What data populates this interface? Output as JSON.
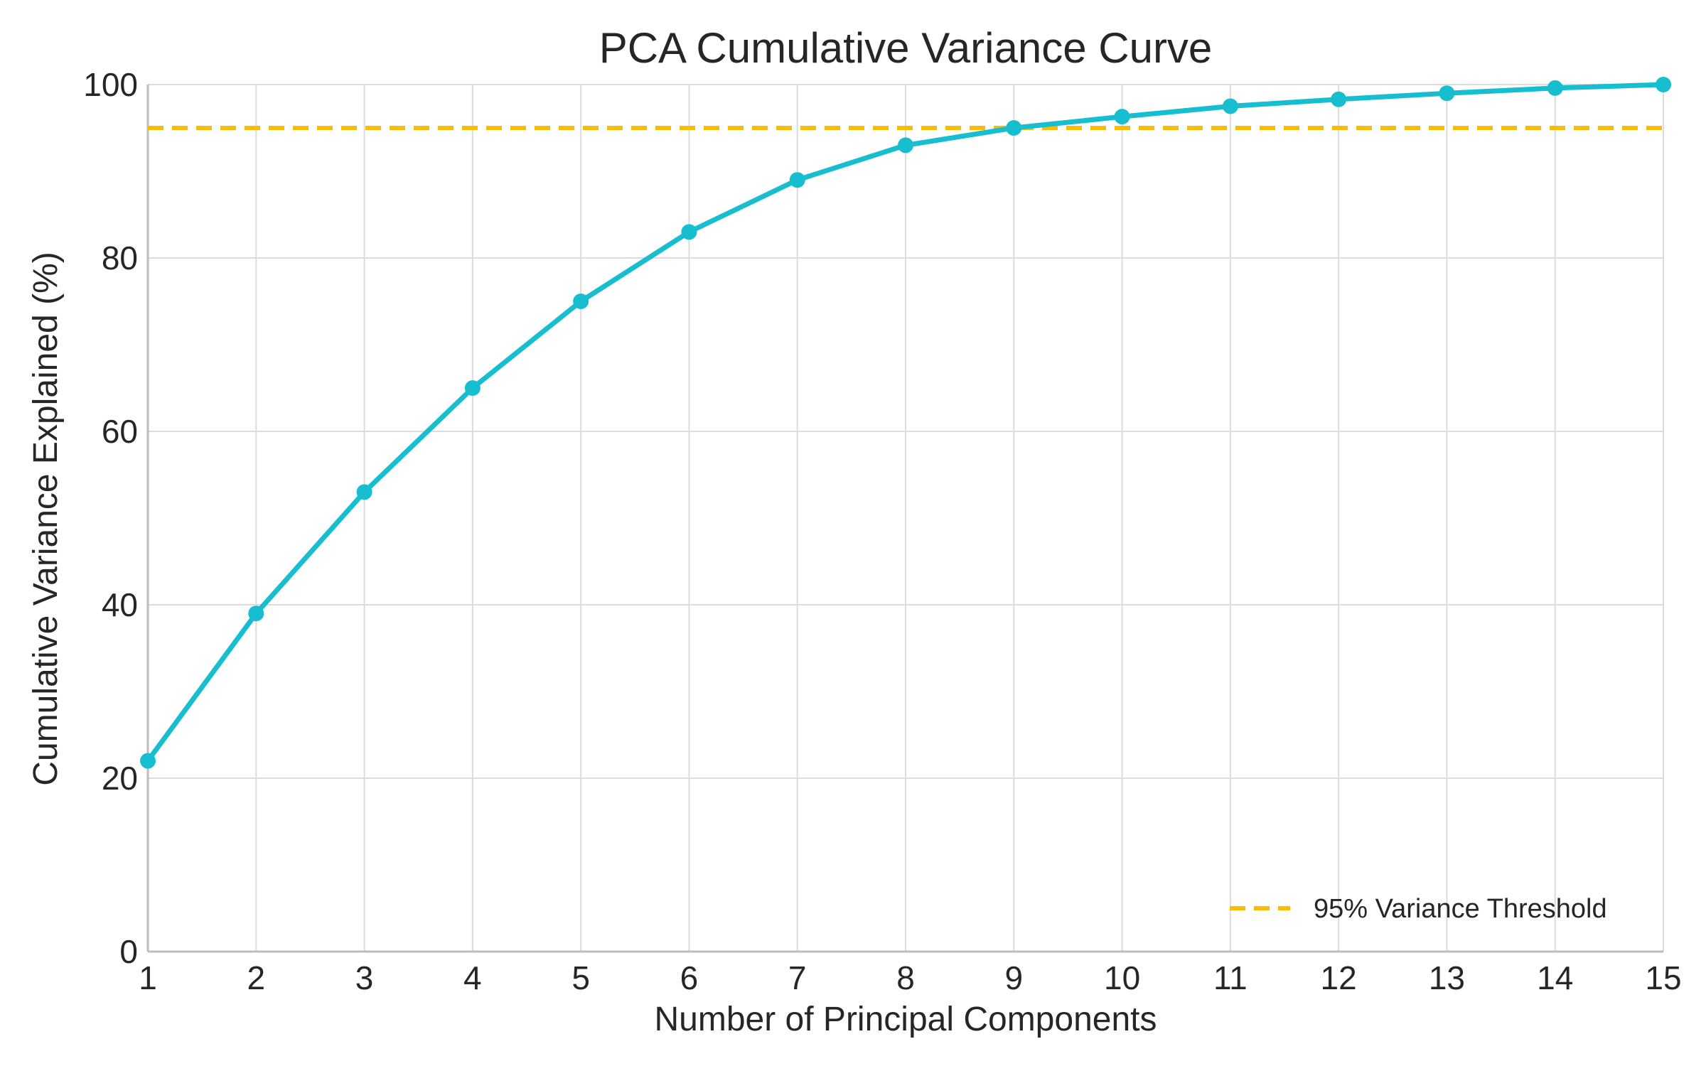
{
  "chart_data": {
    "type": "line",
    "title": "PCA Cumulative Variance Curve",
    "xlabel": "Number of Principal Components",
    "ylabel": "Cumulative Variance Explained (%)",
    "xlim": [
      1,
      15
    ],
    "ylim": [
      0,
      100
    ],
    "x_ticks": [
      1,
      2,
      3,
      4,
      5,
      6,
      7,
      8,
      9,
      10,
      11,
      12,
      13,
      14,
      15
    ],
    "y_ticks": [
      0,
      20,
      40,
      60,
      80,
      100
    ],
    "grid": true,
    "legend_position": "bottom-right",
    "series": [
      {
        "color": "#17becf",
        "marker": "circle",
        "x": [
          1,
          2,
          3,
          4,
          5,
          6,
          7,
          8,
          9,
          10,
          11,
          12,
          13,
          14,
          15
        ],
        "values": [
          22,
          39,
          53,
          65,
          75,
          83,
          89,
          93,
          95,
          96.3,
          97.5,
          98.3,
          99,
          99.6,
          100
        ]
      }
    ],
    "threshold": {
      "name": "95% Variance Threshold",
      "value": 95,
      "color": "#fbbc05",
      "style": "dashed"
    }
  }
}
